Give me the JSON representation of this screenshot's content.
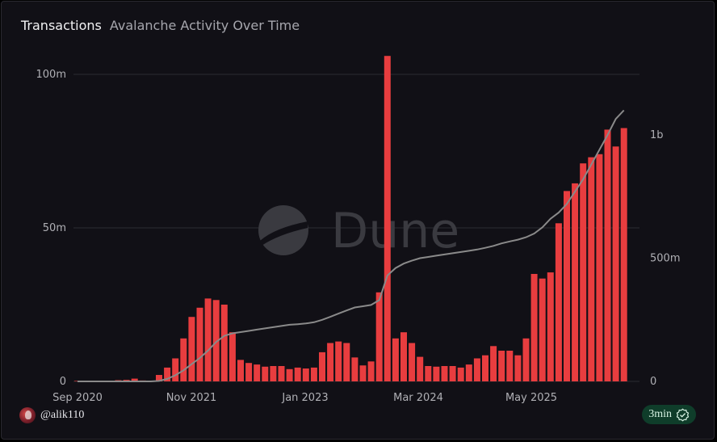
{
  "header": {
    "title": "Transactions",
    "subtitle": "Avalanche Activity Over Time"
  },
  "watermark": "Dune",
  "footer": {
    "username": "@alik110",
    "badge": "3min"
  },
  "colors": {
    "bar": "#e83d3f",
    "line": "#8a8a8a",
    "grid": "#2b2b31",
    "text": "#b0b0b5"
  },
  "chart_data": {
    "type": "bar",
    "x_tick_labels": [
      "Sep 2020",
      "Nov 2021",
      "Jan 2023",
      "Mar 2024",
      "May 2025"
    ],
    "y_left": {
      "ticks": [
        0,
        50,
        100
      ],
      "tick_labels": [
        "0",
        "50m",
        "100m"
      ],
      "range": [
        0,
        100
      ]
    },
    "y_right": {
      "ticks": [
        0,
        500,
        1000
      ],
      "tick_labels": [
        "0",
        "500m",
        "1b"
      ],
      "range": [
        0,
        1000
      ]
    },
    "grid": true,
    "series": [
      {
        "type": "bar",
        "axis": "left",
        "unit": "millions",
        "values": [
          0.1,
          0.1,
          0.1,
          0.1,
          0.2,
          0.4,
          0.5,
          0.9,
          0.3,
          0.2,
          2.1,
          4.5,
          7.5,
          14,
          21,
          24,
          27,
          26.5,
          25,
          16,
          7,
          6,
          5.5,
          4.8,
          5,
          5,
          4,
          4.5,
          4.2,
          4.5,
          9.5,
          12.5,
          13,
          12.5,
          7.8,
          5.2,
          6.5,
          29,
          106,
          14,
          16,
          12.5,
          8,
          5,
          4.8,
          5,
          5,
          4.5,
          5.5,
          7.5,
          8.5,
          11.5,
          10,
          10,
          8.5,
          14,
          35,
          33.5,
          35.5,
          51.5,
          62,
          64.5,
          71,
          73,
          74,
          82,
          76.5,
          82.5
        ]
      },
      {
        "type": "line",
        "axis": "right",
        "unit": "millions",
        "values": [
          0,
          0,
          0,
          0,
          0,
          0,
          0,
          0,
          0,
          0,
          2,
          10,
          25,
          45,
          70,
          95,
          125,
          160,
          185,
          195,
          200,
          205,
          210,
          215,
          220,
          225,
          230,
          232,
          235,
          240,
          250,
          262,
          275,
          288,
          300,
          305,
          310,
          330,
          430,
          460,
          478,
          490,
          500,
          505,
          510,
          515,
          520,
          525,
          530,
          535,
          542,
          550,
          560,
          568,
          575,
          585,
          600,
          625,
          660,
          685,
          720,
          770,
          820,
          880,
          940,
          1000,
          1065,
          1100
        ]
      }
    ]
  }
}
